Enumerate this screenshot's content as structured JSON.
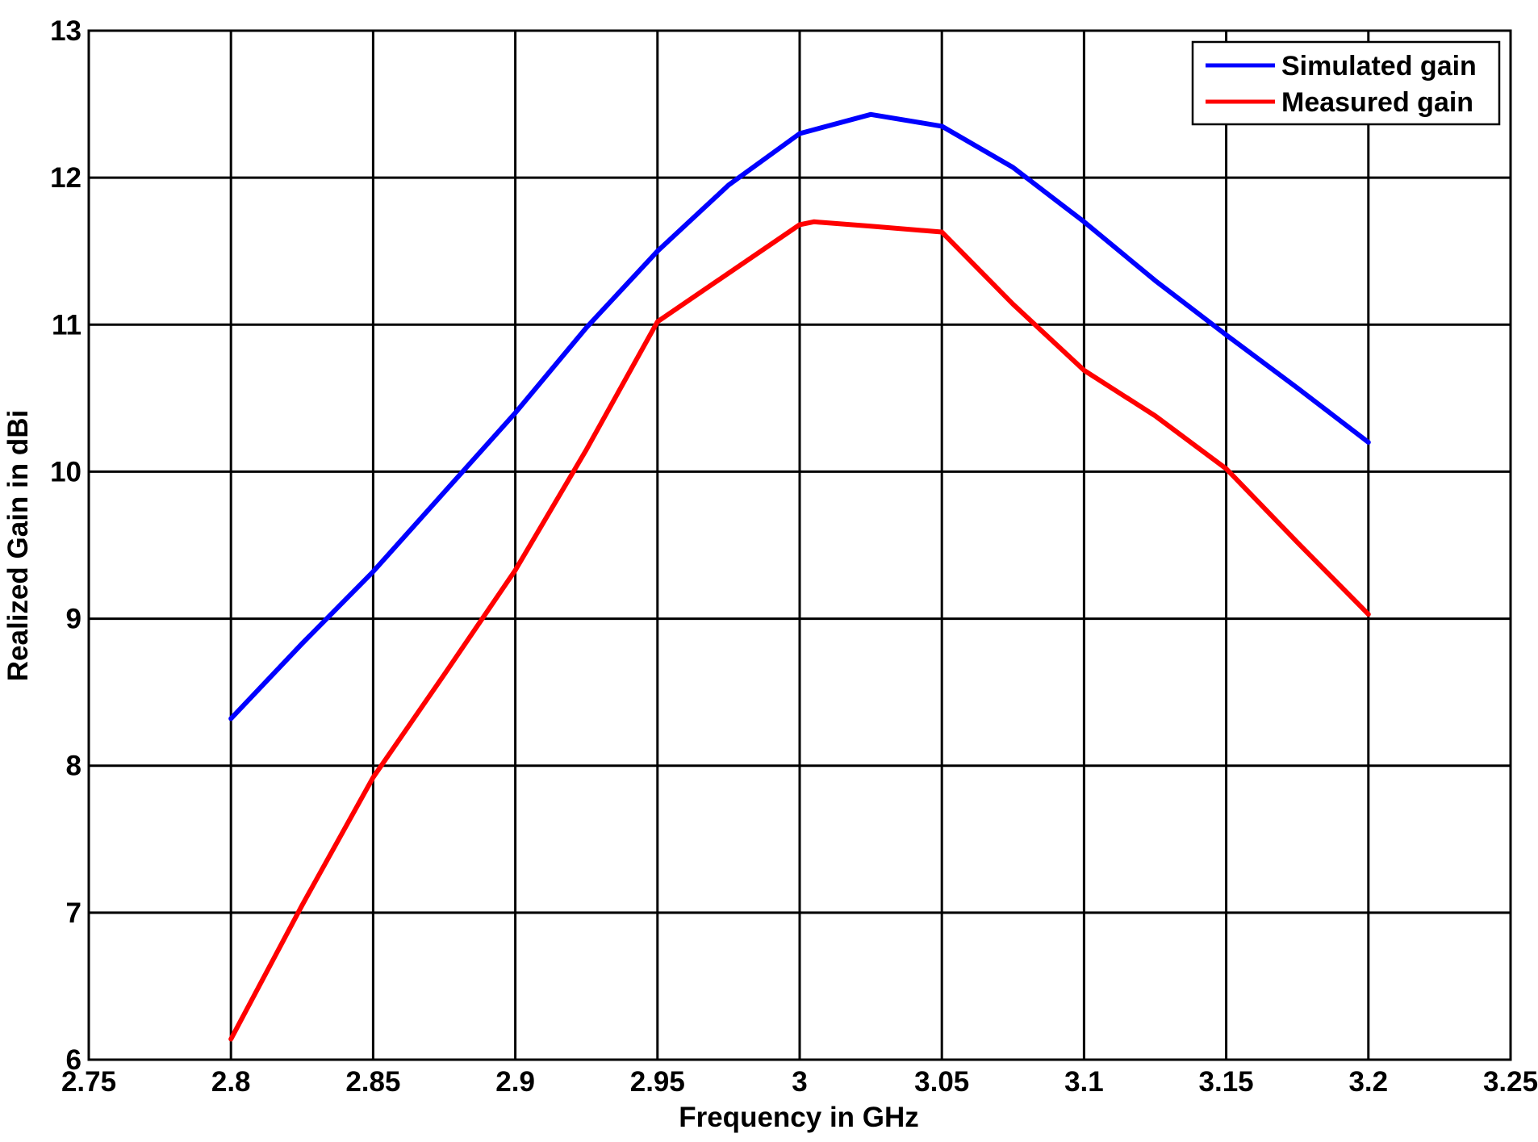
{
  "chart_data": {
    "type": "line",
    "xlabel": "Frequency in GHz",
    "ylabel": "Realized Gain in dBi",
    "xlim": [
      2.75,
      3.25
    ],
    "ylim": [
      6,
      13
    ],
    "xticks": [
      "2.75",
      "2.8",
      "2.85",
      "2.9",
      "2.95",
      "3",
      "3.05",
      "3.1",
      "3.15",
      "3.2",
      "3.25"
    ],
    "yticks": [
      "6",
      "7",
      "8",
      "9",
      "10",
      "11",
      "12",
      "13"
    ],
    "grid": true,
    "legend_position": "top-right",
    "series": [
      {
        "name": "Simulated gain",
        "color": "#0000ff",
        "x": [
          2.8,
          2.825,
          2.85,
          2.875,
          2.9,
          2.925,
          2.95,
          2.975,
          3.0,
          3.025,
          3.05,
          3.075,
          3.1,
          3.125,
          3.15,
          3.175,
          3.2
        ],
        "y": [
          8.32,
          8.83,
          9.32,
          9.86,
          10.4,
          10.98,
          11.5,
          11.95,
          12.3,
          12.43,
          12.35,
          12.07,
          11.7,
          11.3,
          10.93,
          10.57,
          10.2
        ]
      },
      {
        "name": "Measured gain",
        "color": "#ff0000",
        "x": [
          2.8,
          2.825,
          2.85,
          2.875,
          2.9,
          2.925,
          2.95,
          2.975,
          3.0,
          3.005,
          3.025,
          3.05,
          3.075,
          3.1,
          3.125,
          3.15,
          3.175,
          3.2
        ],
        "y": [
          6.14,
          7.05,
          7.92,
          8.62,
          9.33,
          10.15,
          11.02,
          11.35,
          11.68,
          11.7,
          11.67,
          11.63,
          11.14,
          10.69,
          10.38,
          10.02,
          9.52,
          9.03
        ]
      }
    ]
  }
}
